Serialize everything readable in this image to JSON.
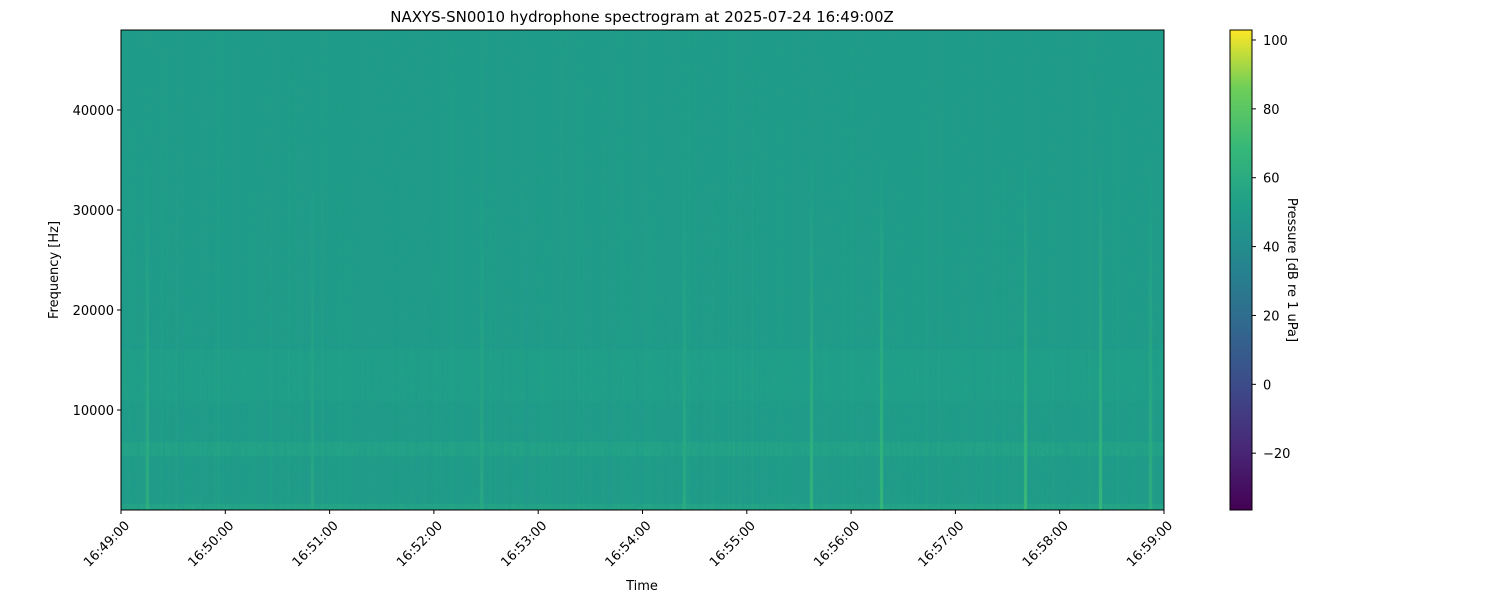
{
  "chart_data": {
    "type": "heatmap",
    "title": "NAXYS-SN0010 hydrophone spectrogram at 2025-07-24 16:49:00Z",
    "xlabel": "Time",
    "ylabel": "Frequency [Hz]",
    "colorbar_label": "Pressure [dB re 1 uPa]",
    "colormap": "viridis",
    "xlim": [
      "16:49:00",
      "16:59:00"
    ],
    "ylim": [
      0,
      48000
    ],
    "clim": [
      -36.5,
      102.9
    ],
    "x_ticks": [
      "16:49:00",
      "16:50:00",
      "16:51:00",
      "16:52:00",
      "16:53:00",
      "16:54:00",
      "16:55:00",
      "16:56:00",
      "16:57:00",
      "16:58:00",
      "16:59:00"
    ],
    "y_ticks": [
      10000,
      20000,
      30000,
      40000
    ],
    "colorbar_ticks": [
      -20,
      0,
      20,
      40,
      60,
      80,
      100
    ],
    "background_level_db": 50,
    "frequency_bands": [
      {
        "low_hz": 0,
        "high_hz": 600,
        "level_db": 62
      },
      {
        "low_hz": 5500,
        "high_hz": 6800,
        "level_db": 60
      },
      {
        "low_hz": 11000,
        "high_hz": 16000,
        "level_db": 55
      }
    ],
    "transients": [
      {
        "time": "16:49:15",
        "level_db": 62
      },
      {
        "time": "16:50:50",
        "level_db": 58
      },
      {
        "time": "16:52:27",
        "level_db": 58
      },
      {
        "time": "16:54:24",
        "level_db": 60
      },
      {
        "time": "16:55:37",
        "level_db": 66
      },
      {
        "time": "16:56:17",
        "level_db": 68
      },
      {
        "time": "16:57:40",
        "level_db": 70
      },
      {
        "time": "16:58:23",
        "level_db": 68
      },
      {
        "time": "16:58:52",
        "level_db": 62
      }
    ]
  }
}
